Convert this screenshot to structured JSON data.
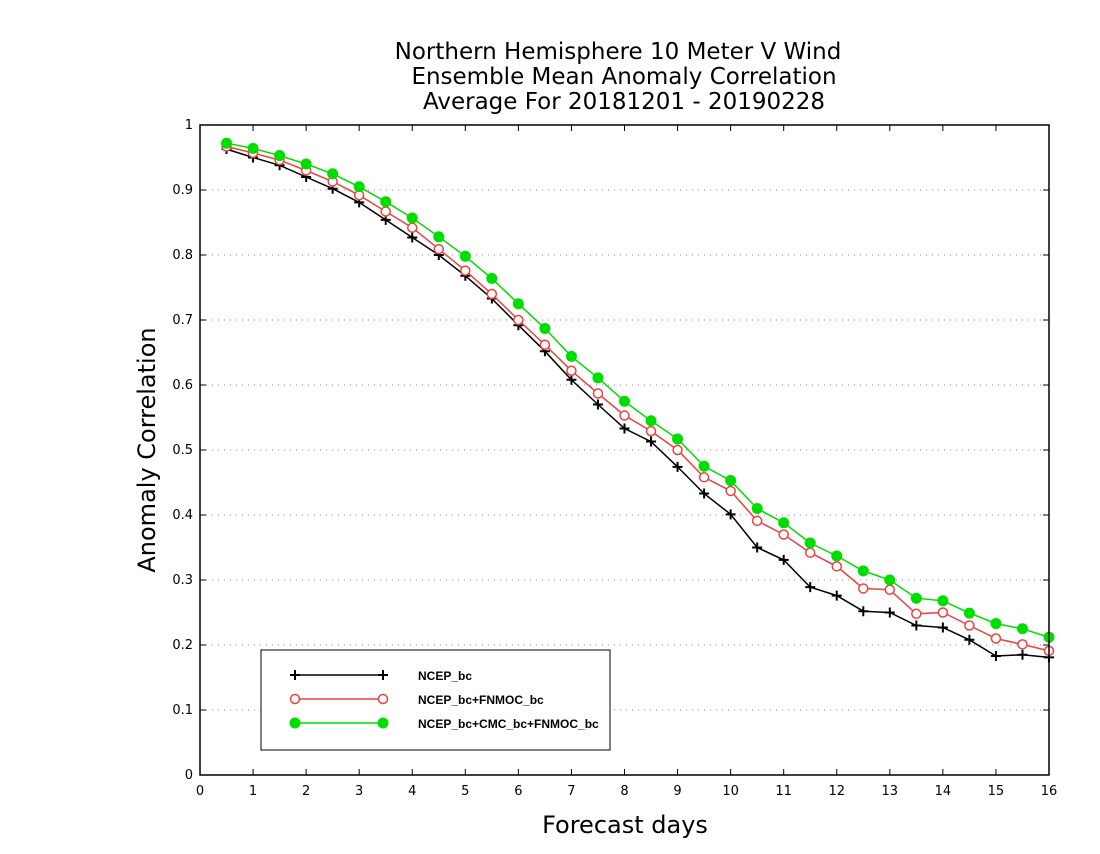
{
  "chart_data": {
    "type": "line",
    "title": [
      "Northern Hemisphere 10 Meter V Wind",
      "Ensemble Mean Anomaly Correlation",
      "Average For 20181201 - 20190228"
    ],
    "xlabel": "Forecast days",
    "ylabel": "Anomaly Correlation",
    "xlim": [
      0,
      16
    ],
    "ylim": [
      0,
      1
    ],
    "x_ticks": [
      "0",
      "1",
      "2",
      "3",
      "4",
      "5",
      "6",
      "7",
      "8",
      "9",
      "10",
      "11",
      "12",
      "13",
      "14",
      "15",
      "16"
    ],
    "y_ticks": [
      "0",
      "0.1",
      "0.2",
      "0.3",
      "0.4",
      "0.5",
      "0.6",
      "0.7",
      "0.8",
      "0.9",
      "1"
    ],
    "grid": "horizontal dotted",
    "legend_position": "bottom-left",
    "x": [
      0.5,
      1,
      1.5,
      2,
      2.5,
      3,
      3.5,
      4,
      4.5,
      5,
      5.5,
      6,
      6.5,
      7,
      7.5,
      8,
      8.5,
      9,
      9.5,
      10,
      10.5,
      11,
      11.5,
      12,
      12.5,
      13,
      13.5,
      14,
      14.5,
      15,
      15.5,
      16
    ],
    "series": [
      {
        "name": "NCEP_bc",
        "color": "#000000",
        "marker": "plus",
        "values": [
          0.963,
          0.95,
          0.938,
          0.92,
          0.902,
          0.881,
          0.854,
          0.827,
          0.8,
          0.768,
          0.733,
          0.692,
          0.652,
          0.608,
          0.57,
          0.533,
          0.513,
          0.474,
          0.433,
          0.401,
          0.35,
          0.331,
          0.289,
          0.276,
          0.252,
          0.25,
          0.23,
          0.227,
          0.208,
          0.183,
          0.185,
          0.181
        ]
      },
      {
        "name": "NCEP_bc+FNMOC_bc",
        "color": "#f04040",
        "marker": "open-circle",
        "values": [
          0.967,
          0.957,
          0.946,
          0.93,
          0.913,
          0.892,
          0.867,
          0.842,
          0.809,
          0.776,
          0.74,
          0.7,
          0.662,
          0.622,
          0.587,
          0.553,
          0.529,
          0.5,
          0.458,
          0.437,
          0.391,
          0.37,
          0.342,
          0.321,
          0.287,
          0.285,
          0.248,
          0.25,
          0.23,
          0.21,
          0.201,
          0.191
        ]
      },
      {
        "name": "NCEP_bc+CMC_bc+FNMOC_bc",
        "color": "#00dd00",
        "marker": "filled-circle",
        "values": [
          0.972,
          0.964,
          0.953,
          0.94,
          0.925,
          0.905,
          0.882,
          0.857,
          0.828,
          0.798,
          0.764,
          0.725,
          0.687,
          0.644,
          0.611,
          0.575,
          0.545,
          0.517,
          0.475,
          0.453,
          0.41,
          0.388,
          0.357,
          0.337,
          0.314,
          0.3,
          0.272,
          0.268,
          0.249,
          0.233,
          0.225,
          0.212
        ]
      }
    ]
  }
}
